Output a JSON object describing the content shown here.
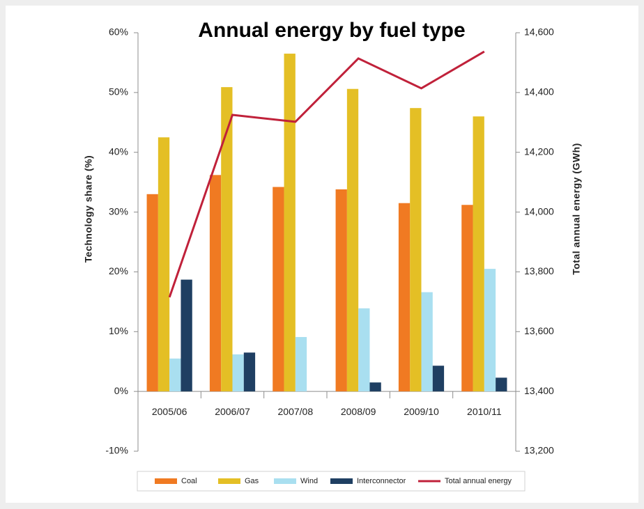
{
  "chart_data": {
    "type": "bar",
    "title": "Annual energy by fuel type",
    "ylabel": "Technology share (%)",
    "y2label": "Total annual energy (GWh)",
    "categories": [
      "2005/06",
      "2006/07",
      "2007/08",
      "2008/09",
      "2009/10",
      "2010/11"
    ],
    "series": [
      {
        "name": "Coal",
        "color": "#f07a22",
        "values": [
          33,
          36.2,
          34.2,
          33.8,
          31.5,
          31.2
        ]
      },
      {
        "name": "Gas",
        "color": "#e4bf25",
        "values": [
          42.5,
          50.9,
          56.5,
          50.6,
          47.4,
          46
        ]
      },
      {
        "name": "Wind",
        "color": "#a9dff0",
        "values": [
          5.5,
          6.2,
          9.1,
          13.9,
          16.6,
          20.5
        ]
      },
      {
        "name": "Interconnector",
        "color": "#1f3f62",
        "values": [
          18.7,
          6.5,
          null,
          1.5,
          4.3,
          2.3
        ]
      },
      {
        "name": "Total annual energy",
        "color": "#c0213a",
        "type": "line",
        "axis": "y2",
        "values": [
          13715,
          14325,
          14302,
          14514,
          14414,
          14537
        ]
      }
    ],
    "ylim": [
      -10,
      60
    ],
    "yticks": [
      {
        "value": -10,
        "label": "-10%"
      },
      {
        "value": 0,
        "label": "0%"
      },
      {
        "value": 10,
        "label": "10%"
      },
      {
        "value": 20,
        "label": "20%"
      },
      {
        "value": 30,
        "label": "30%"
      },
      {
        "value": 40,
        "label": "40%"
      },
      {
        "value": 50,
        "label": "50%"
      },
      {
        "value": 60,
        "label": "60%"
      }
    ],
    "y2lim": [
      13200,
      14600
    ],
    "y2ticks": [
      {
        "value": 13200,
        "label": "13,200"
      },
      {
        "value": 13400,
        "label": "13,400"
      },
      {
        "value": 13600,
        "label": "13,600"
      },
      {
        "value": 13800,
        "label": "13,800"
      },
      {
        "value": 14000,
        "label": "14,000"
      },
      {
        "value": 14200,
        "label": "14,200"
      },
      {
        "value": 14400,
        "label": "14,400"
      },
      {
        "value": 14600,
        "label": "14,600"
      }
    ],
    "grid": false,
    "legend": "bottom"
  }
}
